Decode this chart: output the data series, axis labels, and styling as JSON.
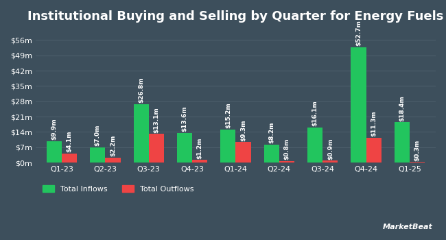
{
  "title": "Institutional Buying and Selling by Quarter for Energy Fuels",
  "quarters": [
    "Q1-23",
    "Q2-23",
    "Q3-23",
    "Q4-23",
    "Q1-24",
    "Q2-24",
    "Q3-24",
    "Q4-24",
    "Q1-25"
  ],
  "inflows": [
    9.9,
    7.0,
    26.8,
    13.6,
    15.2,
    8.2,
    16.1,
    52.7,
    18.4
  ],
  "outflows": [
    4.1,
    2.2,
    13.1,
    1.2,
    9.3,
    0.8,
    0.9,
    11.3,
    0.3
  ],
  "inflow_labels": [
    "$9.9m",
    "$7.0m",
    "$26.8m",
    "$13.6m",
    "$15.2m",
    "$8.2m",
    "$16.1m",
    "$52.7m",
    "$18.4m"
  ],
  "outflow_labels": [
    "$4.1m",
    "$2.2m",
    "$13.1m",
    "$1.2m",
    "$9.3m",
    "$0.8m",
    "$0.9m",
    "$11.3m",
    "$0.3m"
  ],
  "inflow_color": "#22c55e",
  "outflow_color": "#ef4444",
  "background_color": "#3d4f5c",
  "text_color": "#ffffff",
  "grid_color": "#4d5f6c",
  "yticks": [
    0,
    7,
    14,
    21,
    28,
    35,
    42,
    49,
    56
  ],
  "ytick_labels": [
    "$0m",
    "$7m",
    "$14m",
    "$21m",
    "$28m",
    "$35m",
    "$42m",
    "$49m",
    "$56m"
  ],
  "ylim": [
    0,
    60
  ],
  "bar_width": 0.35,
  "legend_inflow": "Total Inflows",
  "legend_outflow": "Total Outflows",
  "title_fontsize": 13,
  "label_fontsize": 6.5,
  "tick_fontsize": 8,
  "legend_fontsize": 8
}
